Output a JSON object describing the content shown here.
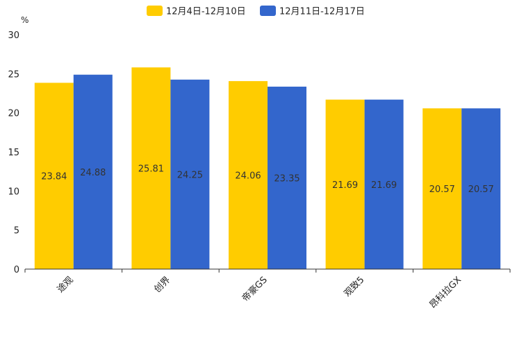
{
  "chart_data": {
    "type": "bar",
    "title": "",
    "xlabel": "",
    "ylabel": "%",
    "ylim": [
      0,
      30
    ],
    "yticks": [
      0,
      5,
      10,
      15,
      20,
      25,
      30
    ],
    "grid": false,
    "legend_position": "top-center",
    "categories": [
      "途观",
      "创界",
      "帝豪GS",
      "观致5",
      "昂科拉GX"
    ],
    "series": [
      {
        "name": "12月4日-12月10日",
        "color": "#FFCC00",
        "values": [
          23.84,
          25.81,
          24.06,
          21.69,
          20.57
        ],
        "labels": [
          "23.84",
          "25.81",
          "24.06",
          "21.69",
          "20.57"
        ]
      },
      {
        "name": "12月11日-12月17日",
        "color": "#3366CC",
        "values": [
          24.88,
          24.25,
          23.35,
          21.69,
          20.57
        ],
        "labels": [
          "24.88",
          "24.25",
          "23.35",
          "21.69",
          "20.57"
        ]
      }
    ]
  }
}
